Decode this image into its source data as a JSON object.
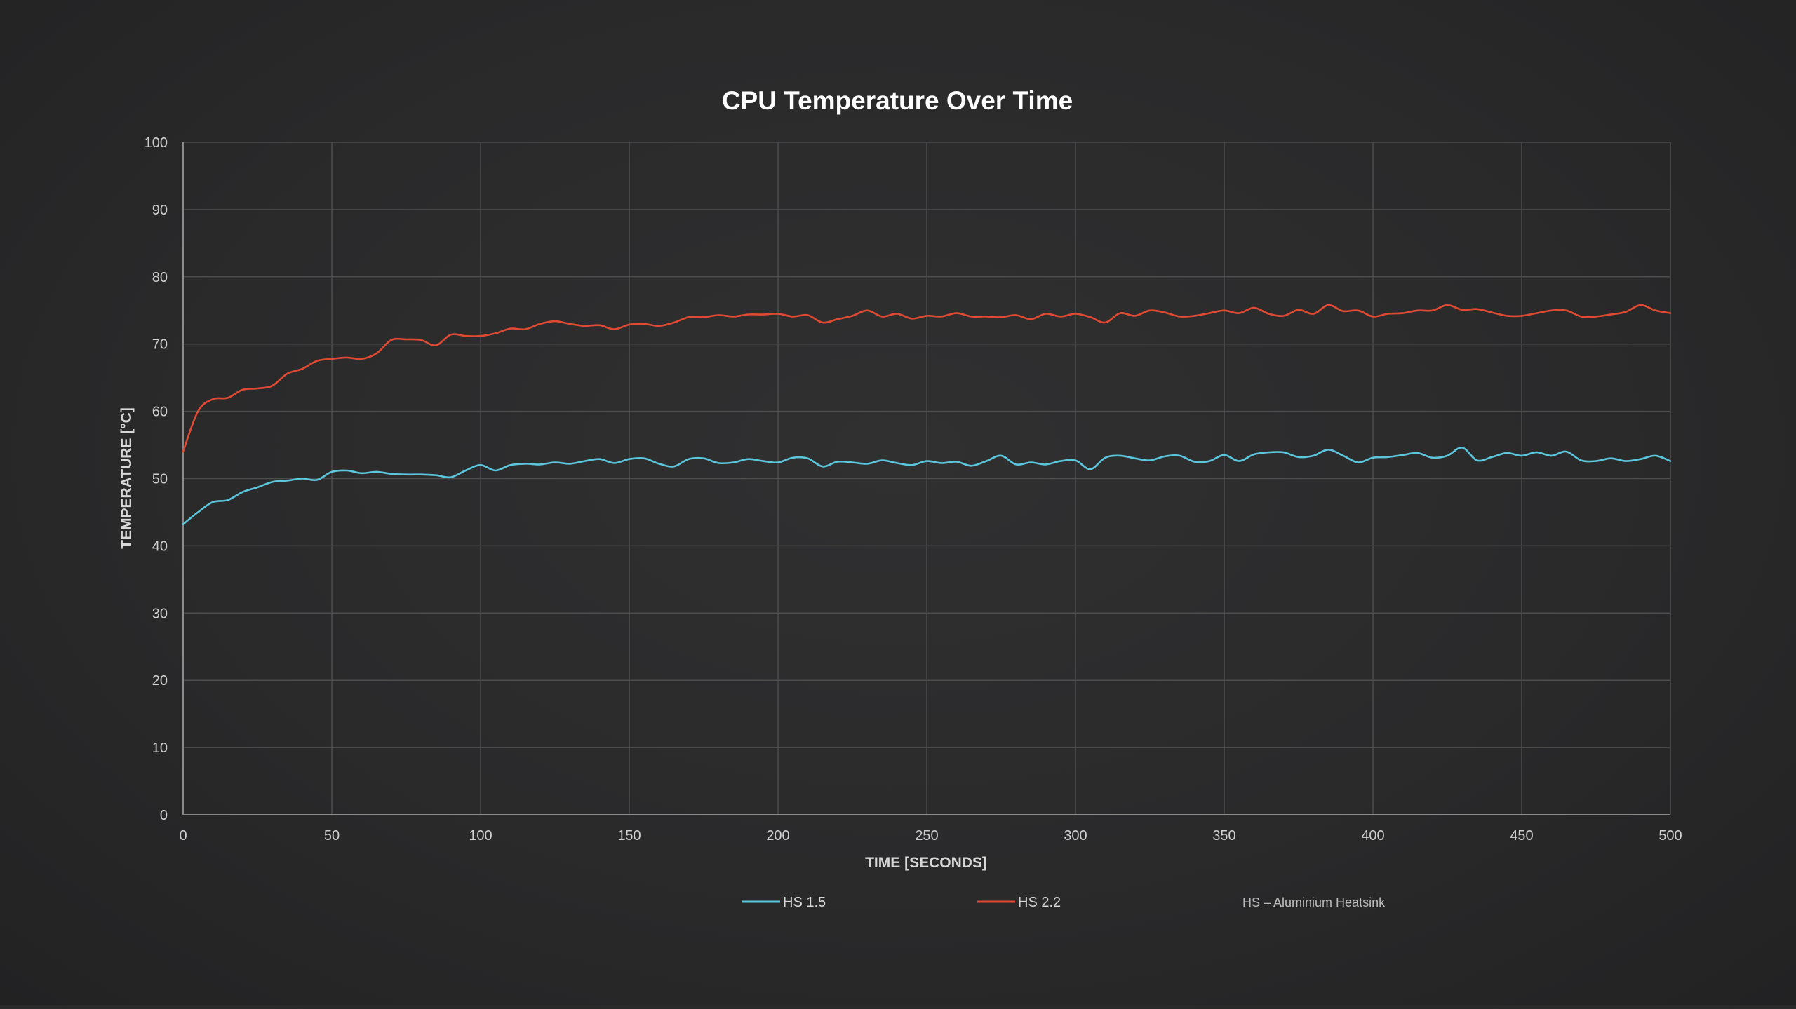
{
  "chart_data": {
    "type": "line",
    "title": "CPU Temperature Over Time",
    "xlabel": "TIME [SECONDS]",
    "ylabel": "TEMPERATURE [°C]",
    "xlim": [
      0,
      500
    ],
    "ylim": [
      0,
      100
    ],
    "x_ticks": [
      0,
      50,
      100,
      150,
      200,
      250,
      300,
      350,
      400,
      450,
      500
    ],
    "y_ticks": [
      0,
      10,
      20,
      30,
      40,
      50,
      60,
      70,
      80,
      90,
      100
    ],
    "grid": true,
    "legend_position": "bottom",
    "note": "HS – Aluminium Heatsink",
    "series": [
      {
        "name": "HS 1.5",
        "color": "#5bc6dc",
        "x": [
          0,
          5,
          10,
          15,
          20,
          25,
          30,
          35,
          40,
          45,
          50,
          55,
          60,
          65,
          70,
          75,
          80,
          85,
          90,
          95,
          100,
          105,
          110,
          115,
          120,
          125,
          130,
          135,
          140,
          145,
          150,
          155,
          160,
          165,
          170,
          175,
          180,
          185,
          190,
          195,
          200,
          205,
          210,
          215,
          220,
          225,
          230,
          235,
          240,
          245,
          250,
          255,
          260,
          265,
          270,
          275,
          280,
          285,
          290,
          295,
          300,
          305,
          310,
          315,
          320,
          325,
          330,
          335,
          340,
          345,
          350,
          355,
          360,
          365,
          370,
          375,
          380,
          385,
          390,
          395,
          400,
          405,
          410,
          415,
          420,
          425,
          430,
          435,
          440,
          445,
          450,
          455,
          460,
          465,
          470,
          475,
          480,
          485,
          490,
          495,
          500
        ],
        "values": [
          43.2,
          45,
          46.5,
          46.8,
          48,
          48.7,
          49.5,
          49.7,
          50,
          49.8,
          51,
          51.2,
          50.8,
          51,
          50.7,
          50.6,
          50.6,
          50.5,
          50.2,
          51.2,
          52,
          51.2,
          52,
          52.2,
          52.1,
          52.4,
          52.2,
          52.6,
          52.9,
          52.3,
          52.9,
          53,
          52.2,
          51.8,
          52.9,
          53,
          52.3,
          52.4,
          52.9,
          52.6,
          52.4,
          53.1,
          53,
          51.8,
          52.5,
          52.4,
          52.2,
          52.7,
          52.3,
          52,
          52.6,
          52.3,
          52.5,
          51.9,
          52.6,
          53.4,
          52.1,
          52.4,
          52.1,
          52.6,
          52.7,
          51.4,
          53.1,
          53.4,
          53,
          52.7,
          53.3,
          53.4,
          52.5,
          52.6,
          53.5,
          52.6,
          53.6,
          53.9,
          53.9,
          53.2,
          53.4,
          54.3,
          53.4,
          52.4,
          53.1,
          53.2,
          53.5,
          53.8,
          53.1,
          53.4,
          54.6,
          52.7,
          53.2,
          53.8,
          53.4,
          53.9,
          53.4,
          54,
          52.7,
          52.6,
          53,
          52.6,
          52.9,
          53.4,
          52.6
        ]
      },
      {
        "name": "HS 2.2",
        "color": "#e04a33",
        "x": [
          0,
          5,
          10,
          15,
          20,
          25,
          30,
          35,
          40,
          45,
          50,
          55,
          60,
          65,
          70,
          75,
          80,
          85,
          90,
          95,
          100,
          105,
          110,
          115,
          120,
          125,
          130,
          135,
          140,
          145,
          150,
          155,
          160,
          165,
          170,
          175,
          180,
          185,
          190,
          195,
          200,
          205,
          210,
          215,
          220,
          225,
          230,
          235,
          240,
          245,
          250,
          255,
          260,
          265,
          270,
          275,
          280,
          285,
          290,
          295,
          300,
          305,
          310,
          315,
          320,
          325,
          330,
          335,
          340,
          345,
          350,
          355,
          360,
          365,
          370,
          375,
          380,
          385,
          390,
          395,
          400,
          405,
          410,
          415,
          420,
          425,
          430,
          435,
          440,
          445,
          450,
          455,
          460,
          465,
          470,
          475,
          480,
          485,
          490,
          495,
          500
        ],
        "values": [
          54,
          60,
          61.8,
          62,
          63.2,
          63.4,
          63.8,
          65.6,
          66.3,
          67.5,
          67.8,
          68,
          67.8,
          68.6,
          70.6,
          70.7,
          70.6,
          69.8,
          71.4,
          71.2,
          71.2,
          71.6,
          72.3,
          72.2,
          73,
          73.4,
          73,
          72.7,
          72.8,
          72.2,
          72.9,
          73,
          72.7,
          73.2,
          74,
          74,
          74.3,
          74.1,
          74.4,
          74.4,
          74.5,
          74.1,
          74.3,
          73.2,
          73.7,
          74.2,
          75,
          74.1,
          74.5,
          73.8,
          74.2,
          74.1,
          74.6,
          74.1,
          74.1,
          74,
          74.3,
          73.7,
          74.5,
          74.1,
          74.5,
          74,
          73.2,
          74.6,
          74.2,
          75,
          74.7,
          74.1,
          74.2,
          74.6,
          75,
          74.6,
          75.4,
          74.5,
          74.2,
          75.1,
          74.5,
          75.8,
          74.9,
          75,
          74.1,
          74.5,
          74.6,
          75,
          75,
          75.8,
          75.1,
          75.2,
          74.7,
          74.2,
          74.2,
          74.6,
          75,
          75,
          74.1,
          74.1,
          74.4,
          74.8,
          75.8,
          75,
          74.6
        ]
      }
    ]
  }
}
